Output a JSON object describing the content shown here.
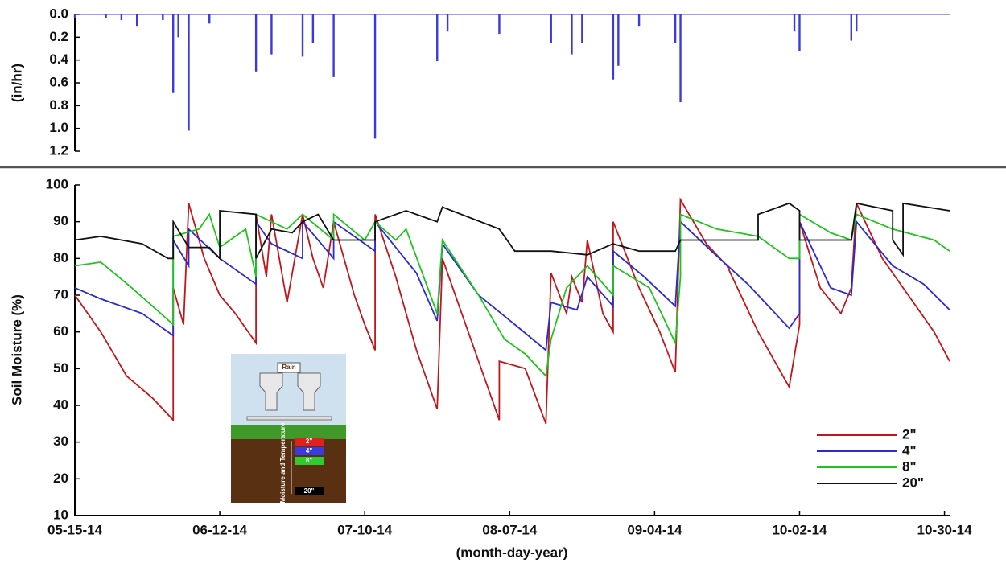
{
  "chart_data": [
    {
      "type": "bar",
      "ylabel": "(in/hr)",
      "color": "#3b3bdc",
      "ylim": [
        0,
        1.2
      ],
      "y_inverted": true,
      "yticks": [
        {
          "value": 0,
          "label": "0.0"
        },
        0.2,
        0.4,
        0.6,
        0.8,
        {
          "value": 1,
          "label": "1.0"
        },
        1.2
      ],
      "xlim": [
        "2014-05-15",
        "2014-10-31"
      ],
      "x": [
        "2014-05-15",
        "2014-05-21",
        "2014-05-24",
        "2014-05-27",
        "2014-06-01",
        "2014-06-03",
        "2014-06-04",
        "2014-06-06",
        "2014-06-10",
        "2014-06-19",
        "2014-06-22",
        "2014-06-28",
        "2014-06-30",
        "2014-07-04",
        "2014-07-12",
        "2014-07-24",
        "2014-07-26",
        "2014-08-05",
        "2014-08-15",
        "2014-08-19",
        "2014-08-21",
        "2014-08-27",
        "2014-08-28",
        "2014-09-01",
        "2014-09-08",
        "2014-09-09",
        "2014-10-01",
        "2014-10-02",
        "2014-10-12",
        "2014-10-13"
      ],
      "values": [
        0.03,
        0.03,
        0.05,
        0.1,
        0.05,
        0.69,
        0.2,
        1.02,
        0.08,
        0.5,
        0.35,
        0.37,
        0.25,
        0.55,
        1.09,
        0.41,
        0.15,
        0.17,
        0.25,
        0.35,
        0.25,
        0.57,
        0.45,
        0.1,
        0.25,
        0.77,
        0.15,
        0.32,
        0.23,
        0.15
      ]
    },
    {
      "type": "line",
      "ylabel": "Soil Moisture (%)",
      "xlabel": "(month-day-year)",
      "ylim": [
        10,
        100
      ],
      "yticks": [
        10,
        20,
        30,
        40,
        50,
        60,
        70,
        80,
        90,
        100
      ],
      "xlim": [
        "2014-05-15",
        "2014-10-31"
      ],
      "xticks": [
        {
          "value": "2014-05-15",
          "label": "05-15-14"
        },
        {
          "value": "2014-06-12",
          "label": "06-12-14"
        },
        {
          "value": "2014-07-10",
          "label": "07-10-14"
        },
        {
          "value": "2014-08-07",
          "label": "08-07-14"
        },
        {
          "value": "2014-09-04",
          "label": "09-04-14"
        },
        {
          "value": "2014-10-02",
          "label": "10-02-14"
        },
        {
          "value": "2014-10-30",
          "label": "10-30-14"
        }
      ],
      "legend": "lower right",
      "series": [
        {
          "name": "2\"",
          "color": "#c0171c",
          "x": [
            "2014-05-15",
            "2014-05-20",
            "2014-05-25",
            "2014-05-30",
            "2014-06-03",
            "2014-06-03",
            "2014-06-05",
            "2014-06-06",
            "2014-06-09",
            "2014-06-12",
            "2014-06-15",
            "2014-06-19",
            "2014-06-19",
            "2014-06-21",
            "2014-06-22",
            "2014-06-25",
            "2014-06-28",
            "2014-06-30",
            "2014-07-02",
            "2014-07-04",
            "2014-07-08",
            "2014-07-10",
            "2014-07-12",
            "2014-07-12",
            "2014-07-16",
            "2014-07-20",
            "2014-07-24",
            "2014-07-25",
            "2014-07-30",
            "2014-08-04",
            "2014-08-05",
            "2014-08-05",
            "2014-08-10",
            "2014-08-14",
            "2014-08-15",
            "2014-08-18",
            "2014-08-19",
            "2014-08-21",
            "2014-08-22",
            "2014-08-25",
            "2014-08-27",
            "2014-08-27",
            "2014-09-01",
            "2014-09-05",
            "2014-09-08",
            "2014-09-09",
            "2014-09-14",
            "2014-09-18",
            "2014-09-24",
            "2014-09-30",
            "2014-10-02",
            "2014-10-02",
            "2014-10-06",
            "2014-10-10",
            "2014-10-12",
            "2014-10-13",
            "2014-10-18",
            "2014-10-24",
            "2014-10-28",
            "2014-10-31"
          ],
          "values": [
            70,
            60,
            48,
            42,
            36,
            72,
            62,
            95,
            80,
            70,
            65,
            57,
            92,
            75,
            92,
            68,
            92,
            80,
            72,
            90,
            70,
            62,
            55,
            92,
            75,
            55,
            39,
            80,
            60,
            40,
            36,
            52,
            50,
            35,
            76,
            65,
            75,
            68,
            85,
            65,
            60,
            90,
            72,
            60,
            49,
            96,
            84,
            78,
            60,
            45,
            62,
            90,
            72,
            65,
            72,
            95,
            80,
            68,
            60,
            52
          ]
        },
        {
          "name": "4\"",
          "color": "#2a2ad0",
          "x": [
            "2014-05-15",
            "2014-05-20",
            "2014-05-28",
            "2014-06-03",
            "2014-06-03",
            "2014-06-06",
            "2014-06-06",
            "2014-06-12",
            "2014-06-19",
            "2014-06-19",
            "2014-06-22",
            "2014-06-28",
            "2014-06-28",
            "2014-07-04",
            "2014-07-04",
            "2014-07-10",
            "2014-07-12",
            "2014-07-12",
            "2014-07-20",
            "2014-07-24",
            "2014-07-25",
            "2014-08-01",
            "2014-08-08",
            "2014-08-14",
            "2014-08-15",
            "2014-08-20",
            "2014-08-22",
            "2014-08-27",
            "2014-08-27",
            "2014-09-02",
            "2014-09-08",
            "2014-09-09",
            "2014-09-15",
            "2014-09-22",
            "2014-09-30",
            "2014-10-02",
            "2014-10-02",
            "2014-10-08",
            "2014-10-12",
            "2014-10-13",
            "2014-10-20",
            "2014-10-26",
            "2014-10-31"
          ],
          "values": [
            72,
            69,
            65,
            59,
            85,
            78,
            88,
            80,
            73,
            90,
            84,
            80,
            90,
            80,
            90,
            84,
            82,
            90,
            76,
            63,
            84,
            70,
            62,
            55,
            68,
            66,
            75,
            67,
            82,
            75,
            67,
            90,
            82,
            73,
            61,
            65,
            90,
            72,
            70,
            90,
            78,
            73,
            66
          ]
        },
        {
          "name": "8\"",
          "color": "#1fc41f",
          "x": [
            "2014-05-15",
            "2014-05-20",
            "2014-05-26",
            "2014-06-03",
            "2014-06-03",
            "2014-06-08",
            "2014-06-10",
            "2014-06-12",
            "2014-06-17",
            "2014-06-19",
            "2014-06-19",
            "2014-06-25",
            "2014-06-28",
            "2014-07-04",
            "2014-07-04",
            "2014-07-10",
            "2014-07-12",
            "2014-07-16",
            "2014-07-18",
            "2014-07-24",
            "2014-07-25",
            "2014-08-01",
            "2014-08-06",
            "2014-08-10",
            "2014-08-14",
            "2014-08-15",
            "2014-08-18",
            "2014-08-22",
            "2014-08-27",
            "2014-08-27",
            "2014-09-03",
            "2014-09-08",
            "2014-09-09",
            "2014-09-09",
            "2014-09-16",
            "2014-09-24",
            "2014-09-30",
            "2014-10-02",
            "2014-10-02",
            "2014-10-08",
            "2014-10-12",
            "2014-10-13",
            "2014-10-20",
            "2014-10-28",
            "2014-10-31"
          ],
          "values": [
            78,
            79,
            72,
            62,
            86,
            88,
            92,
            83,
            88,
            75,
            92,
            88,
            92,
            85,
            92,
            85,
            90,
            85,
            88,
            65,
            85,
            70,
            58,
            54,
            48,
            58,
            72,
            78,
            70,
            78,
            72,
            57,
            75,
            92,
            88,
            86,
            80,
            80,
            92,
            87,
            85,
            92,
            88,
            85,
            82
          ]
        },
        {
          "name": "20\"",
          "color": "#111111",
          "x": [
            "2014-05-15",
            "2014-05-20",
            "2014-05-28",
            "2014-06-02",
            "2014-06-03",
            "2014-06-03",
            "2014-06-06",
            "2014-06-10",
            "2014-06-12",
            "2014-06-12",
            "2014-06-19",
            "2014-06-19",
            "2014-06-22",
            "2014-06-26",
            "2014-06-28",
            "2014-07-01",
            "2014-07-04",
            "2014-07-12",
            "2014-07-12",
            "2014-07-18",
            "2014-07-24",
            "2014-07-25",
            "2014-08-05",
            "2014-08-08",
            "2014-08-15",
            "2014-08-22",
            "2014-08-27",
            "2014-09-01",
            "2014-09-08",
            "2014-09-09",
            "2014-09-24",
            "2014-09-24",
            "2014-09-30",
            "2014-10-02",
            "2014-10-02",
            "2014-10-12",
            "2014-10-13",
            "2014-10-20",
            "2014-10-20",
            "2014-10-22",
            "2014-10-22",
            "2014-10-31"
          ],
          "values": [
            85,
            86,
            84,
            80,
            80,
            90,
            83,
            83,
            80,
            93,
            92,
            80,
            88,
            87,
            90,
            92,
            85,
            85,
            90,
            93,
            90,
            94,
            88,
            82,
            82,
            81,
            84,
            82,
            82,
            85,
            85,
            92,
            95,
            93,
            85,
            85,
            95,
            93,
            85,
            81,
            95,
            93
          ]
        }
      ]
    }
  ],
  "inset": {
    "title": "Rain",
    "side_label": "Soil Moisture and Temperature",
    "depths": [
      "2\"",
      "4\"",
      "8\"",
      "20\""
    ]
  }
}
